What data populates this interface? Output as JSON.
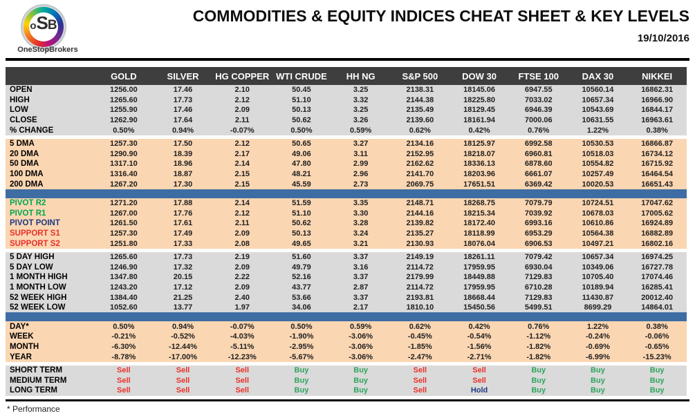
{
  "header": {
    "title": "COMMODITIES & EQUITY INDICES CHEAT SHEET & KEY LEVELS",
    "date": "19/10/2016",
    "logo": {
      "monogram": [
        "o",
        "S",
        "B"
      ],
      "brand": "OneStopBrokers"
    }
  },
  "footnote": "* Performance",
  "colors": {
    "header_bar": "#3e3e3e",
    "block_gray": "#dadada",
    "block_peach": "#fbd6b2",
    "separator_blue": "#3e6da4",
    "resistance_green": "#00a550",
    "pivot_navy": "#1f3880",
    "support_red": "#e8312a",
    "signal": {
      "Buy": "#2ea45d",
      "Sell": "#e8312a",
      "Hold": "#1f3880"
    }
  },
  "table": {
    "columns": [
      "GOLD",
      "SILVER",
      "HG COPPER",
      "WTI CRUDE",
      "HH NG",
      "S&P 500",
      "DOW 30",
      "FTSE 100",
      "DAX 30",
      "NIKKEI"
    ],
    "blocks": [
      {
        "id": "session",
        "bg": "gray",
        "separator_after": "gap",
        "rows": [
          {
            "label": "OPEN",
            "values": [
              "1256.00",
              "17.46",
              "2.10",
              "50.45",
              "3.25",
              "2138.31",
              "18145.06",
              "6947.55",
              "10560.14",
              "16862.31"
            ]
          },
          {
            "label": "HIGH",
            "values": [
              "1265.60",
              "17.73",
              "2.12",
              "51.10",
              "3.32",
              "2144.38",
              "18225.80",
              "7033.02",
              "10657.34",
              "16966.90"
            ]
          },
          {
            "label": "LOW",
            "values": [
              "1255.90",
              "17.46",
              "2.09",
              "50.13",
              "3.25",
              "2135.49",
              "18129.45",
              "6946.39",
              "10543.69",
              "16844.17"
            ]
          },
          {
            "label": "CLOSE",
            "values": [
              "1262.90",
              "17.64",
              "2.11",
              "50.62",
              "3.26",
              "2139.60",
              "18161.94",
              "7000.06",
              "10631.55",
              "16963.61"
            ]
          },
          {
            "label": "% CHANGE",
            "values": [
              "0.50%",
              "0.94%",
              "-0.07%",
              "0.50%",
              "0.59%",
              "0.62%",
              "0.42%",
              "0.76%",
              "1.22%",
              "0.38%"
            ]
          }
        ]
      },
      {
        "id": "moving-averages",
        "bg": "peach",
        "separator_after": "blue",
        "rows": [
          {
            "label": "5 DMA",
            "values": [
              "1257.30",
              "17.50",
              "2.12",
              "50.65",
              "3.27",
              "2134.16",
              "18125.97",
              "6992.58",
              "10530.53",
              "16866.87"
            ]
          },
          {
            "label": "20 DMA",
            "values": [
              "1290.90",
              "18.39",
              "2.17",
              "49.06",
              "3.11",
              "2152.95",
              "18218.07",
              "6960.81",
              "10518.03",
              "16734.12"
            ]
          },
          {
            "label": "50 DMA",
            "values": [
              "1317.10",
              "18.96",
              "2.14",
              "47.80",
              "2.99",
              "2162.62",
              "18336.13",
              "6878.60",
              "10554.82",
              "16715.92"
            ]
          },
          {
            "label": "100 DMA",
            "values": [
              "1316.40",
              "18.87",
              "2.15",
              "48.21",
              "2.96",
              "2141.70",
              "18203.96",
              "6661.07",
              "10257.49",
              "16464.54"
            ]
          },
          {
            "label": "200 DMA",
            "values": [
              "1267.20",
              "17.30",
              "2.15",
              "45.59",
              "2.73",
              "2069.75",
              "17651.51",
              "6369.42",
              "10020.53",
              "16651.43"
            ]
          }
        ]
      },
      {
        "id": "pivots",
        "bg": "peach",
        "separator_after": "gap",
        "rows": [
          {
            "label": "PIVOT R2",
            "style": "r",
            "values": [
              "1271.20",
              "17.88",
              "2.14",
              "51.59",
              "3.35",
              "2148.71",
              "18268.75",
              "7079.79",
              "10724.51",
              "17047.62"
            ]
          },
          {
            "label": "PIVOT R1",
            "style": "r",
            "values": [
              "1267.00",
              "17.76",
              "2.12",
              "51.10",
              "3.30",
              "2144.16",
              "18215.34",
              "7039.92",
              "10678.03",
              "17005.62"
            ]
          },
          {
            "label": "PIVOT POINT",
            "style": "p",
            "values": [
              "1261.50",
              "17.61",
              "2.11",
              "50.62",
              "3.28",
              "2139.82",
              "18172.40",
              "6993.16",
              "10610.86",
              "16924.89"
            ]
          },
          {
            "label": "SUPPORT S1",
            "style": "s",
            "values": [
              "1257.30",
              "17.49",
              "2.09",
              "50.13",
              "3.24",
              "2135.27",
              "18118.99",
              "6953.29",
              "10564.38",
              "16882.89"
            ]
          },
          {
            "label": "SUPPORT S2",
            "style": "s",
            "values": [
              "1251.80",
              "17.33",
              "2.08",
              "49.65",
              "3.21",
              "2130.93",
              "18076.04",
              "6906.53",
              "10497.21",
              "16802.16"
            ]
          }
        ]
      },
      {
        "id": "ranges",
        "bg": "gray",
        "separator_after": "blue",
        "rows": [
          {
            "label": "5 DAY HIGH",
            "values": [
              "1265.60",
              "17.73",
              "2.19",
              "51.60",
              "3.37",
              "2149.19",
              "18261.11",
              "7079.42",
              "10657.34",
              "16974.25"
            ]
          },
          {
            "label": "5 DAY LOW",
            "values": [
              "1246.90",
              "17.32",
              "2.09",
              "49.79",
              "3.16",
              "2114.72",
              "17959.95",
              "6930.04",
              "10349.06",
              "16727.78"
            ]
          },
          {
            "label": "1 MONTH HIGH",
            "values": [
              "1347.80",
              "20.15",
              "2.22",
              "52.16",
              "3.37",
              "2179.99",
              "18449.88",
              "7129.83",
              "10705.40",
              "17074.46"
            ]
          },
          {
            "label": "1 MONTH LOW",
            "values": [
              "1243.20",
              "17.12",
              "2.09",
              "43.77",
              "2.87",
              "2114.72",
              "17959.95",
              "6710.28",
              "10189.94",
              "16285.41"
            ]
          },
          {
            "label": "52 WEEK HIGH",
            "values": [
              "1384.40",
              "21.25",
              "2.40",
              "53.66",
              "3.37",
              "2193.81",
              "18668.44",
              "7129.83",
              "11430.87",
              "20012.40"
            ]
          },
          {
            "label": "52 WEEK LOW",
            "values": [
              "1052.60",
              "13.77",
              "1.97",
              "34.06",
              "2.17",
              "1810.10",
              "15450.56",
              "5499.51",
              "8699.29",
              "14864.01"
            ]
          }
        ]
      },
      {
        "id": "performance",
        "bg": "peach",
        "separator_after": "gap",
        "rows": [
          {
            "label": "DAY*",
            "values": [
              "0.50%",
              "0.94%",
              "-0.07%",
              "0.50%",
              "0.59%",
              "0.62%",
              "0.42%",
              "0.76%",
              "1.22%",
              "0.38%"
            ]
          },
          {
            "label": "WEEK",
            "values": [
              "-0.21%",
              "-0.52%",
              "-4.03%",
              "-1.90%",
              "-3.06%",
              "-0.45%",
              "-0.54%",
              "-1.12%",
              "-0.24%",
              "-0.06%"
            ]
          },
          {
            "label": "MONTH",
            "values": [
              "-6.30%",
              "-12.44%",
              "-5.11%",
              "-2.95%",
              "-3.06%",
              "-1.85%",
              "-1.56%",
              "-1.82%",
              "-0.69%",
              "-0.65%"
            ]
          },
          {
            "label": "YEAR",
            "values": [
              "-8.78%",
              "-17.00%",
              "-12.23%",
              "-5.67%",
              "-3.06%",
              "-2.47%",
              "-2.71%",
              "-1.82%",
              "-6.99%",
              "-15.23%"
            ]
          }
        ]
      },
      {
        "id": "signals",
        "bg": "gray",
        "separator_after": "none",
        "rows": [
          {
            "label": "SHORT TERM",
            "values": [
              "Sell",
              "Sell",
              "Sell",
              "Buy",
              "Buy",
              "Sell",
              "Sell",
              "Buy",
              "Buy",
              "Buy"
            ]
          },
          {
            "label": "MEDIUM TERM",
            "values": [
              "Sell",
              "Sell",
              "Sell",
              "Buy",
              "Buy",
              "Sell",
              "Sell",
              "Buy",
              "Buy",
              "Buy"
            ]
          },
          {
            "label": "LONG TERM",
            "values": [
              "Sell",
              "Sell",
              "Sell",
              "Buy",
              "Buy",
              "Sell",
              "Hold",
              "Buy",
              "Buy",
              "Buy"
            ]
          }
        ]
      }
    ]
  }
}
